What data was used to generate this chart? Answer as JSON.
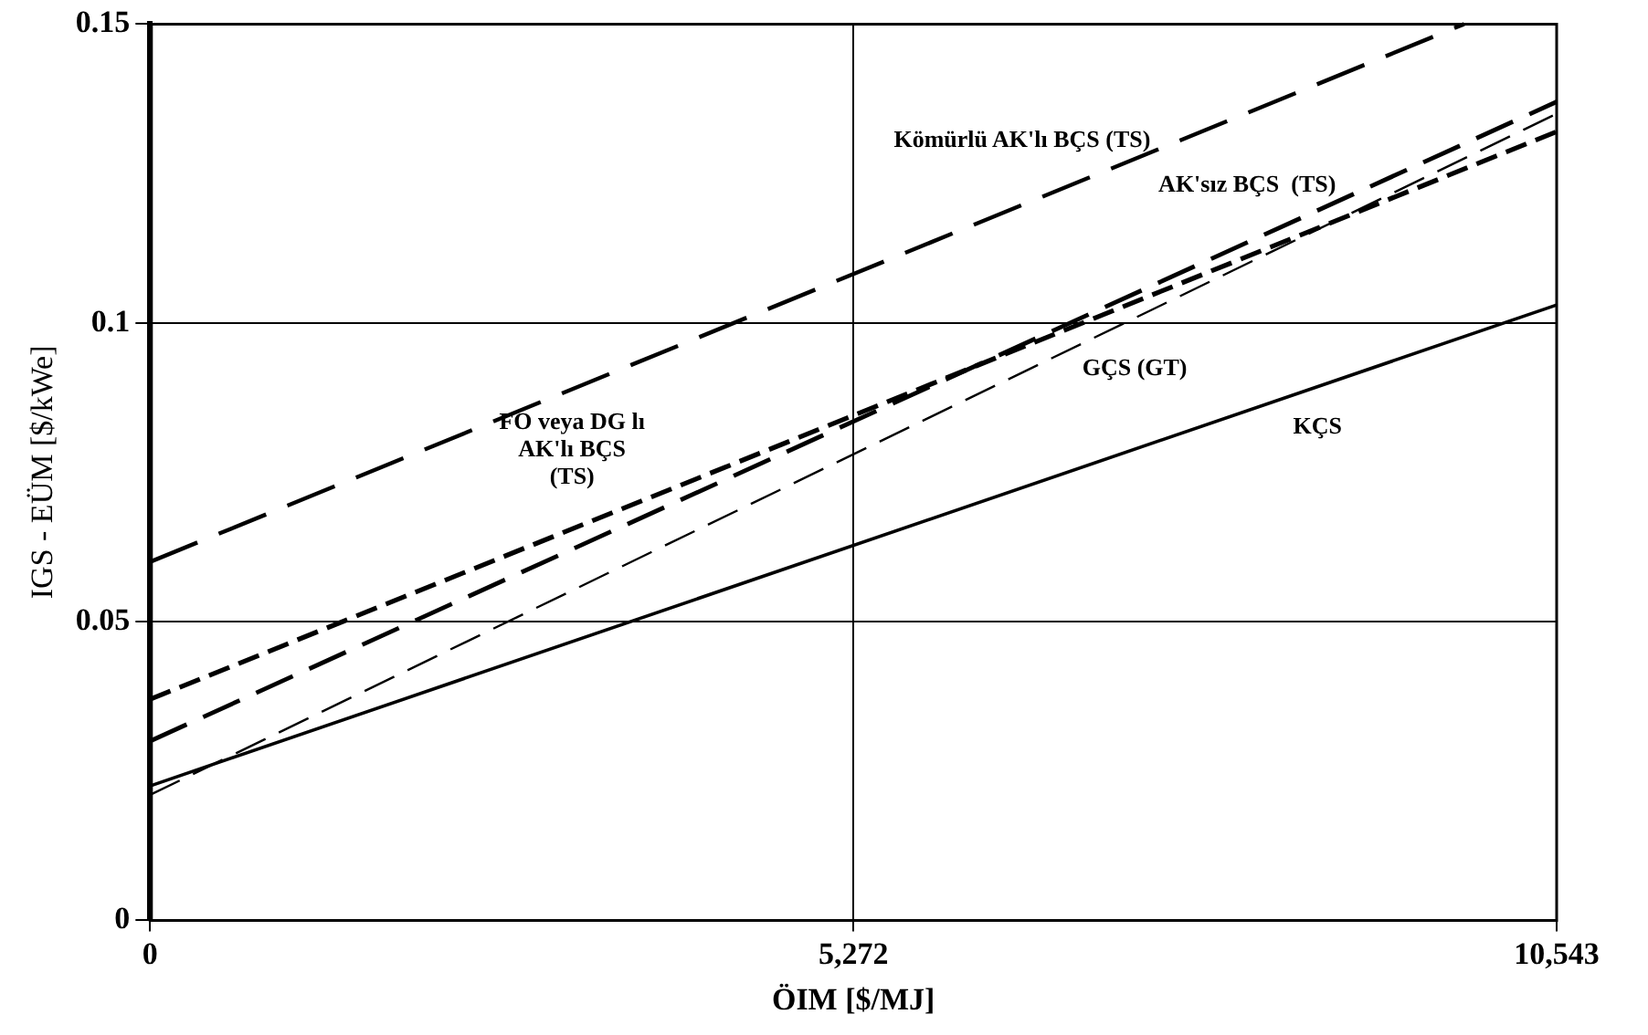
{
  "chart_data": {
    "type": "line",
    "xlabel": "ÖIM [$/MJ]",
    "ylabel": "IGS - EÜM [$/kWe]",
    "xlim": [
      0,
      10543
    ],
    "xticks": [
      0,
      {
        "value": 5272,
        "label": "5,272"
      },
      {
        "value": 10543,
        "label": "10,543"
      }
    ],
    "ylim": [
      0,
      0.15
    ],
    "yticks": [
      0,
      0.05,
      0.1,
      0.15
    ],
    "grid": true,
    "legend": false,
    "marker": "none",
    "series": [
      {
        "name": "Kömürlü AK'lı BÇS (TS)",
        "color": "#000000",
        "line_style": "dashed",
        "x": [
          0,
          9850
        ],
        "values": [
          0.06,
          0.15
        ]
      },
      {
        "name": "FO veya DG lı AK'lı BÇS (TS)",
        "color": "#000000",
        "line_style": "dashed",
        "x": [
          0,
          10543
        ],
        "values": [
          0.037,
          0.132
        ]
      },
      {
        "name": "AK'sız BÇS  (TS)",
        "color": "#000000",
        "line_style": "dashed",
        "x": [
          0,
          10543
        ],
        "values": [
          0.03,
          0.137
        ]
      },
      {
        "name": "GÇS (GT)",
        "color": "#000000",
        "line_style": "dashed",
        "x": [
          0,
          10543
        ],
        "values": [
          0.021,
          0.135
        ]
      },
      {
        "name": "KÇS",
        "color": "#000000",
        "line_style": "solid",
        "x": [
          0,
          10543
        ],
        "values": [
          0.0225,
          0.103
        ]
      }
    ]
  }
}
